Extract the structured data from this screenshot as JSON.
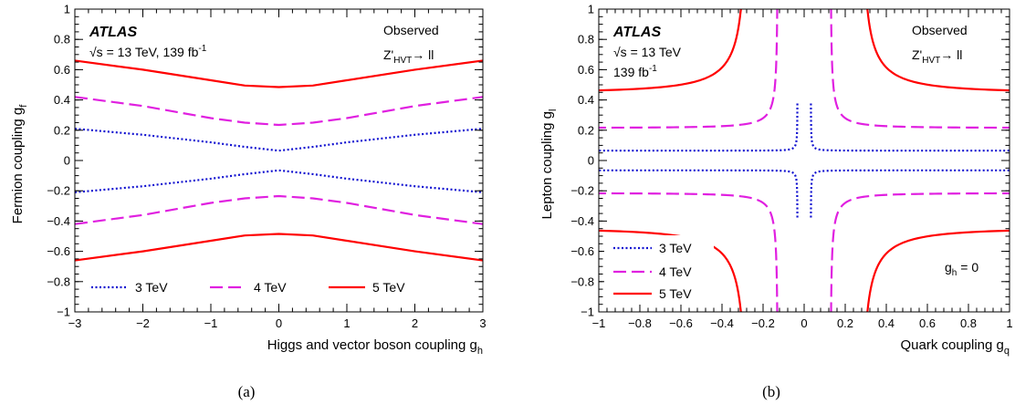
{
  "chart_data": [
    {
      "type": "line",
      "panel_label": "(a)",
      "xlabel": "Higgs and vector boson coupling g",
      "xlabel_sub": "h",
      "ylabel": "Fermion coupling g",
      "ylabel_sub": "f",
      "xlim": [
        -3,
        3
      ],
      "ylim": [
        -1,
        1
      ],
      "x_ticks": [
        "−3",
        "−2",
        "−1",
        "0",
        "1",
        "2",
        "3"
      ],
      "y_ticks": [
        "−1",
        "−0.8",
        "−0.6",
        "−0.4",
        "−0.2",
        "0",
        "0.2",
        "0.4",
        "0.6",
        "0.8",
        "1"
      ],
      "annotations": {
        "experiment": "ATLAS",
        "energy": "√s = 13 TeV, 139 fb",
        "energy_sup": "-1",
        "status": "Observed",
        "model_main": "Z'",
        "model_sub": "HVT",
        "model_decay": "→ ll"
      },
      "legend_position": "bottom",
      "series": [
        {
          "name": "3 TeV",
          "color": "#1010d0",
          "style": "dotted",
          "x": [
            -3,
            -2,
            -1,
            -0.5,
            0,
            0.5,
            1,
            2,
            3
          ],
          "upper": [
            0.21,
            0.17,
            0.12,
            0.09,
            0.065,
            0.09,
            0.12,
            0.17,
            0.21
          ],
          "lower": [
            -0.21,
            -0.17,
            -0.12,
            -0.09,
            -0.065,
            -0.09,
            -0.12,
            -0.17,
            -0.21
          ]
        },
        {
          "name": "4 TeV",
          "color": "#e020e0",
          "style": "dashed",
          "x": [
            -3,
            -2,
            -1,
            -0.5,
            0,
            0.5,
            1,
            2,
            3
          ],
          "upper": [
            0.42,
            0.36,
            0.28,
            0.25,
            0.235,
            0.25,
            0.28,
            0.36,
            0.42
          ],
          "lower": [
            -0.42,
            -0.36,
            -0.28,
            -0.25,
            -0.235,
            -0.25,
            -0.28,
            -0.36,
            -0.42
          ]
        },
        {
          "name": "5 TeV",
          "color": "#ff0000",
          "style": "solid",
          "x": [
            -3,
            -2,
            -1,
            -0.5,
            0,
            0.5,
            1,
            2,
            3
          ],
          "upper": [
            0.66,
            0.6,
            0.53,
            0.495,
            0.485,
            0.495,
            0.53,
            0.6,
            0.66
          ],
          "lower": [
            -0.66,
            -0.6,
            -0.53,
            -0.495,
            -0.485,
            -0.495,
            -0.53,
            -0.6,
            -0.66
          ]
        }
      ]
    },
    {
      "type": "line",
      "panel_label": "(b)",
      "xlabel": "Quark coupling g",
      "xlabel_sub": "q",
      "ylabel": "Lepton coupling g",
      "ylabel_sub": "l",
      "xlim": [
        -1,
        1
      ],
      "ylim": [
        -1,
        1
      ],
      "x_ticks": [
        "−1",
        "−0.8",
        "−0.6",
        "−0.4",
        "−0.2",
        "0",
        "0.2",
        "0.4",
        "0.6",
        "0.8",
        "1"
      ],
      "y_ticks": [
        "−1",
        "−0.8",
        "−0.6",
        "−0.4",
        "−0.2",
        "0",
        "0.2",
        "0.4",
        "0.6",
        "0.8",
        "1"
      ],
      "annotations": {
        "experiment": "ATLAS",
        "energy": "√s = 13 TeV",
        "lumi": "139 fb",
        "lumi_sup": "-1",
        "status": "Observed",
        "model_main": "Z'",
        "model_sub": "HVT",
        "model_decay": "→ ll",
        "gh_main": "g",
        "gh_sub": "h",
        "gh_rest": " = 0"
      },
      "legend_position": "bottom-left",
      "series": [
        {
          "name": "3 TeV",
          "color": "#1010d0",
          "style": "dotted",
          "product": 0.0025,
          "asymptote": 0.05
        },
        {
          "name": "4 TeV",
          "color": "#e020e0",
          "style": "dashed",
          "product": 0.0255,
          "asymptote": 0.2
        },
        {
          "name": "5 TeV",
          "color": "#ff0000",
          "style": "solid",
          "product": 0.1149,
          "asymptote": 0.43
        }
      ]
    }
  ]
}
